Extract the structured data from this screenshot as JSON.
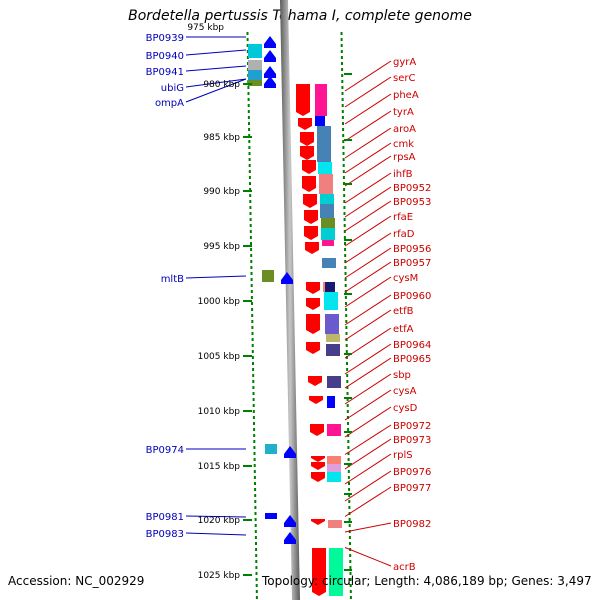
{
  "title": "Bordetella pertussis Tohama I, complete genome",
  "footer": {
    "accession": "Accession: NC_002929",
    "topology": "Topology: circular; Length: 4,086,189 bp; Genes: 3,497"
  },
  "scale": {
    "partial_top_label": "975 kbp",
    "ticks": [
      "980 kbp",
      "985 kbp",
      "990 kbp",
      "995 kbp",
      "1000 kbp",
      "1005 kbp",
      "1010 kbp",
      "1015 kbp",
      "1020 kbp",
      "1025 kbp"
    ]
  },
  "left_genes": [
    "BP0939",
    "BP0940",
    "BP0941",
    "ubiG",
    "ompA",
    "mltB",
    "BP0974",
    "BP0981",
    "BP0983"
  ],
  "right_genes": [
    "gyrA",
    "serC",
    "pheA",
    "tyrA",
    "aroA",
    "cmk",
    "rpsA",
    "ihfB",
    "BP0952",
    "BP0953",
    "rfaE",
    "rfaD",
    "BP0956",
    "BP0957",
    "cysM",
    "BP0960",
    "etfB",
    "etfA",
    "BP0964",
    "BP0965",
    "sbp",
    "cysA",
    "cysD",
    "BP0972",
    "BP0973",
    "rplS",
    "BP0976",
    "BP0977",
    "BP0982",
    "acrB"
  ],
  "colors": {
    "reverse_strand": "#ff0000",
    "forward_strand": "#0000ff",
    "backbone": "#808080",
    "left_label": "#0000b8",
    "right_label": "#cc0000",
    "dotted_track": "#008000"
  }
}
